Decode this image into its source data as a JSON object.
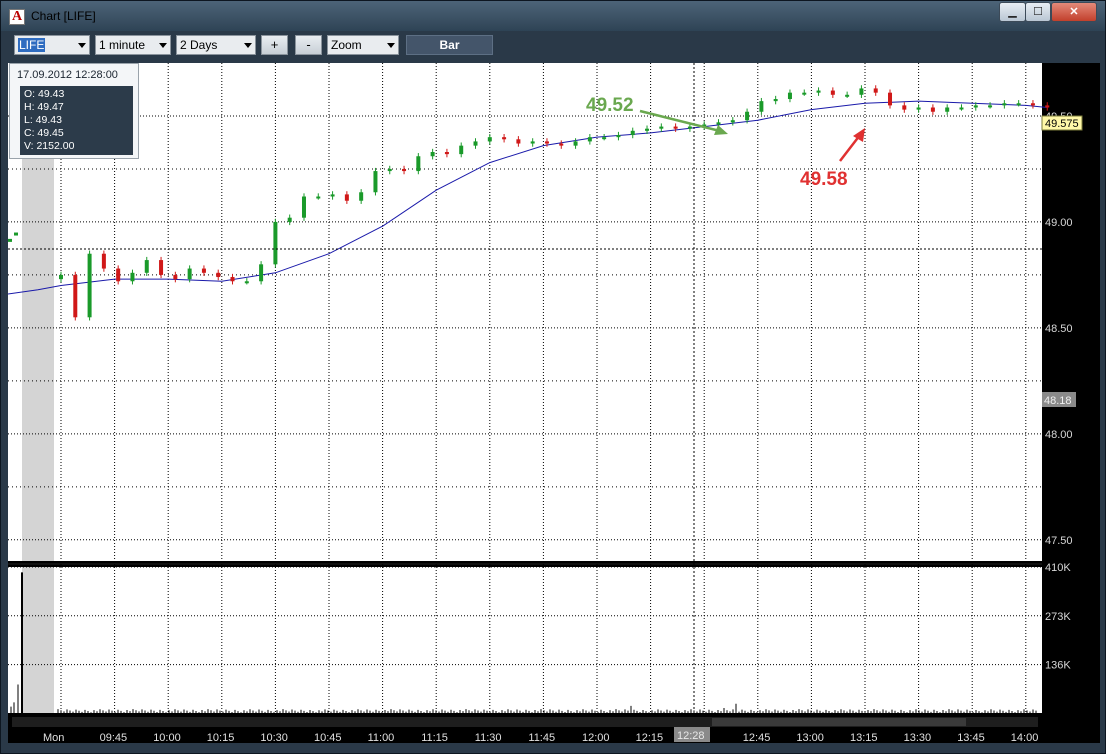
{
  "window": {
    "title": "Chart [LIFE]",
    "icon_letter": "A",
    "buttons": {
      "minimize": "▁",
      "maximize": "☐",
      "close": "✕"
    }
  },
  "toolbar": {
    "symbol": "LIFE",
    "interval": "1 minute",
    "period": "2 Days",
    "zoom_in": "+",
    "zoom_out": "-",
    "zoom_mode": "Zoom",
    "chart_type": "Bar"
  },
  "info_box": {
    "datetime": "17.09.2012 12:28:00",
    "open": "O: 49.43",
    "high": "H: 49.47",
    "low": "L: 49.43",
    "close": "C: 49.45",
    "volume": "V: 2152.00"
  },
  "price_axis": {
    "ticks": [
      "49.50",
      "49.00",
      "48.50",
      "48.00",
      "47.50"
    ],
    "current_price_tag": "49.575",
    "crosshair_price_tag": "48.18"
  },
  "volume_axis": {
    "ticks": [
      "410K",
      "273K",
      "136K"
    ]
  },
  "time_axis": {
    "labels": [
      "Mon",
      "09:45",
      "10:00",
      "10:15",
      "10:30",
      "10:45",
      "11:00",
      "11:15",
      "11:30",
      "11:45",
      "12:00",
      "12:15",
      "12:45",
      "13:00",
      "13:15",
      "13:30",
      "13:45",
      "14:00"
    ],
    "cursor_time": "12:28"
  },
  "annotations": {
    "green": {
      "text": "49.52",
      "color": "#6aa84f"
    },
    "red": {
      "text": "49.58",
      "color": "#e03131"
    }
  },
  "colors": {
    "up_candle": "#1a9a2a",
    "down_candle": "#d01818",
    "moving_average": "#1a1aaa",
    "background": "#ffffff",
    "price_tag": "#fff8a8"
  },
  "chart_data": {
    "type": "candlestick",
    "series": [
      {
        "name": "",
        "x": [
          "09:30",
          "09:34",
          "09:38",
          "09:42",
          "09:46",
          "09:50",
          "09:54",
          "09:58",
          "10:02",
          "10:06",
          "10:10",
          "10:14",
          "10:18",
          "10:22",
          "10:26",
          "10:30",
          "10:34",
          "10:38",
          "10:42",
          "10:46",
          "10:50",
          "10:54",
          "10:58",
          "11:02",
          "11:06",
          "11:10",
          "11:14",
          "11:18",
          "11:22",
          "11:26",
          "11:30",
          "11:34",
          "11:38",
          "11:42",
          "11:46",
          "11:50",
          "11:54",
          "11:58",
          "12:02",
          "12:06",
          "12:10",
          "12:14",
          "12:18",
          "12:22",
          "12:26",
          "12:30",
          "12:34",
          "12:38",
          "12:42",
          "12:46",
          "12:50",
          "12:54",
          "12:58",
          "13:02",
          "13:06",
          "13:10",
          "13:14",
          "13:18",
          "13:22",
          "13:26",
          "13:30",
          "13:34",
          "13:38",
          "13:42",
          "13:46",
          "13:50",
          "13:54",
          "13:58",
          "14:02",
          "14:06"
        ],
        "values": [
          48.75,
          48.55,
          48.85,
          48.78,
          48.72,
          48.76,
          48.82,
          48.75,
          48.73,
          48.78,
          48.76,
          48.74,
          48.72,
          48.72,
          48.8,
          49.0,
          49.02,
          49.12,
          49.12,
          49.13,
          49.1,
          49.14,
          49.24,
          49.25,
          49.24,
          49.31,
          49.33,
          49.32,
          49.36,
          49.38,
          49.4,
          49.39,
          49.37,
          49.38,
          49.37,
          49.36,
          49.38,
          49.4,
          49.4,
          49.41,
          49.43,
          49.44,
          49.45,
          49.44,
          49.45,
          49.46,
          49.47,
          49.48,
          49.52,
          49.57,
          49.58,
          49.61,
          49.61,
          49.62,
          49.6,
          49.6,
          49.63,
          49.61,
          49.55,
          49.53,
          49.54,
          49.52,
          49.54,
          49.54,
          49.55,
          49.55,
          49.56,
          49.56,
          49.55,
          49.54
        ]
      },
      {
        "name": "",
        "x": [
          "09:30",
          "09:45",
          "10:00",
          "10:15",
          "10:30",
          "10:45",
          "11:00",
          "11:15",
          "11:30",
          "11:45",
          "12:00",
          "12:15",
          "12:30",
          "12:45",
          "13:00",
          "13:15",
          "13:30",
          "13:45",
          "14:00",
          "14:06"
        ],
        "values": [
          48.7,
          48.73,
          48.73,
          48.72,
          48.76,
          48.85,
          48.98,
          49.15,
          49.28,
          49.36,
          49.4,
          49.42,
          49.45,
          49.48,
          49.53,
          49.56,
          49.57,
          49.56,
          49.55,
          49.54
        ]
      }
    ],
    "ylim": [
      47.4,
      49.75
    ],
    "volume_ylim": [
      0,
      410000
    ],
    "grid": true
  }
}
